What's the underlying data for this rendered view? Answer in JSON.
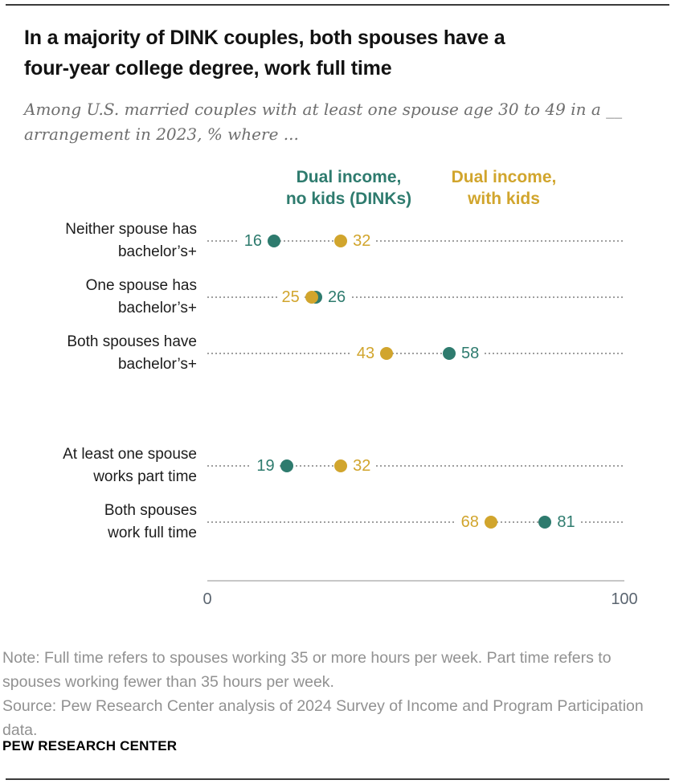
{
  "header": {
    "title_line1": "In a majority of DINK couples, both spouses have a",
    "title_line2": "four-year college degree, work full time",
    "subtitle_line1": "Among U.S. married couples with at least one spouse age 30 to 49 in a __",
    "subtitle_line2": "arrangement in 2023, % where ..."
  },
  "legend": {
    "dinks": {
      "line1": "Dual income,",
      "line2": "no kids (DINKs)"
    },
    "with_kids": {
      "line1": "Dual income,",
      "line2": "with kids"
    }
  },
  "chart_data": {
    "type": "scatter",
    "orientation": "horizontal_dot_plot",
    "title": "In a majority of DINK couples, both spouses have a four-year college degree, work full time",
    "subtitle": "Among U.S. married couples with at least one spouse age 30 to 49 in a __ arrangement in 2023, % where ...",
    "xlim": [
      0,
      100
    ],
    "x_tick_labels": [
      "0",
      "100"
    ],
    "grid": "dotted_leader_lines",
    "legend_position": "top",
    "categories": [
      [
        "Neither spouse has",
        "bachelor’s+"
      ],
      [
        "One spouse has",
        "bachelor’s+"
      ],
      [
        "Both spouses have",
        "bachelor’s+"
      ],
      [
        "At least one spouse",
        "works part time"
      ],
      [
        "Both spouses",
        "work full time"
      ]
    ],
    "series": [
      {
        "key": "dinks",
        "name": "Dual income, no kids (DINKs)",
        "color": "#2E7B6E",
        "values": [
          16,
          26,
          58,
          19,
          81
        ]
      },
      {
        "key": "with_kids",
        "name": "Dual income, with kids",
        "color": "#D1A52D",
        "values": [
          32,
          25,
          43,
          32,
          68
        ]
      }
    ],
    "label_sides": [
      {
        "dinks": "left",
        "with_kids": "right"
      },
      {
        "dinks": "right",
        "with_kids": "left"
      },
      {
        "dinks": "right",
        "with_kids": "left"
      },
      {
        "dinks": "left",
        "with_kids": "right"
      },
      {
        "dinks": "right",
        "with_kids": "left"
      }
    ]
  },
  "axis": {
    "min": "0",
    "max": "100"
  },
  "note": {
    "lines": [
      "Note: Full time refers to spouses working 35 or more hours per week. Part time refers to",
      "spouses working fewer than 35 hours per week.",
      "Source: Pew Research Center analysis of 2024 Survey of Income and Program Participation",
      "data."
    ]
  },
  "footer": {
    "brand": "PEW RESEARCH CENTER"
  }
}
